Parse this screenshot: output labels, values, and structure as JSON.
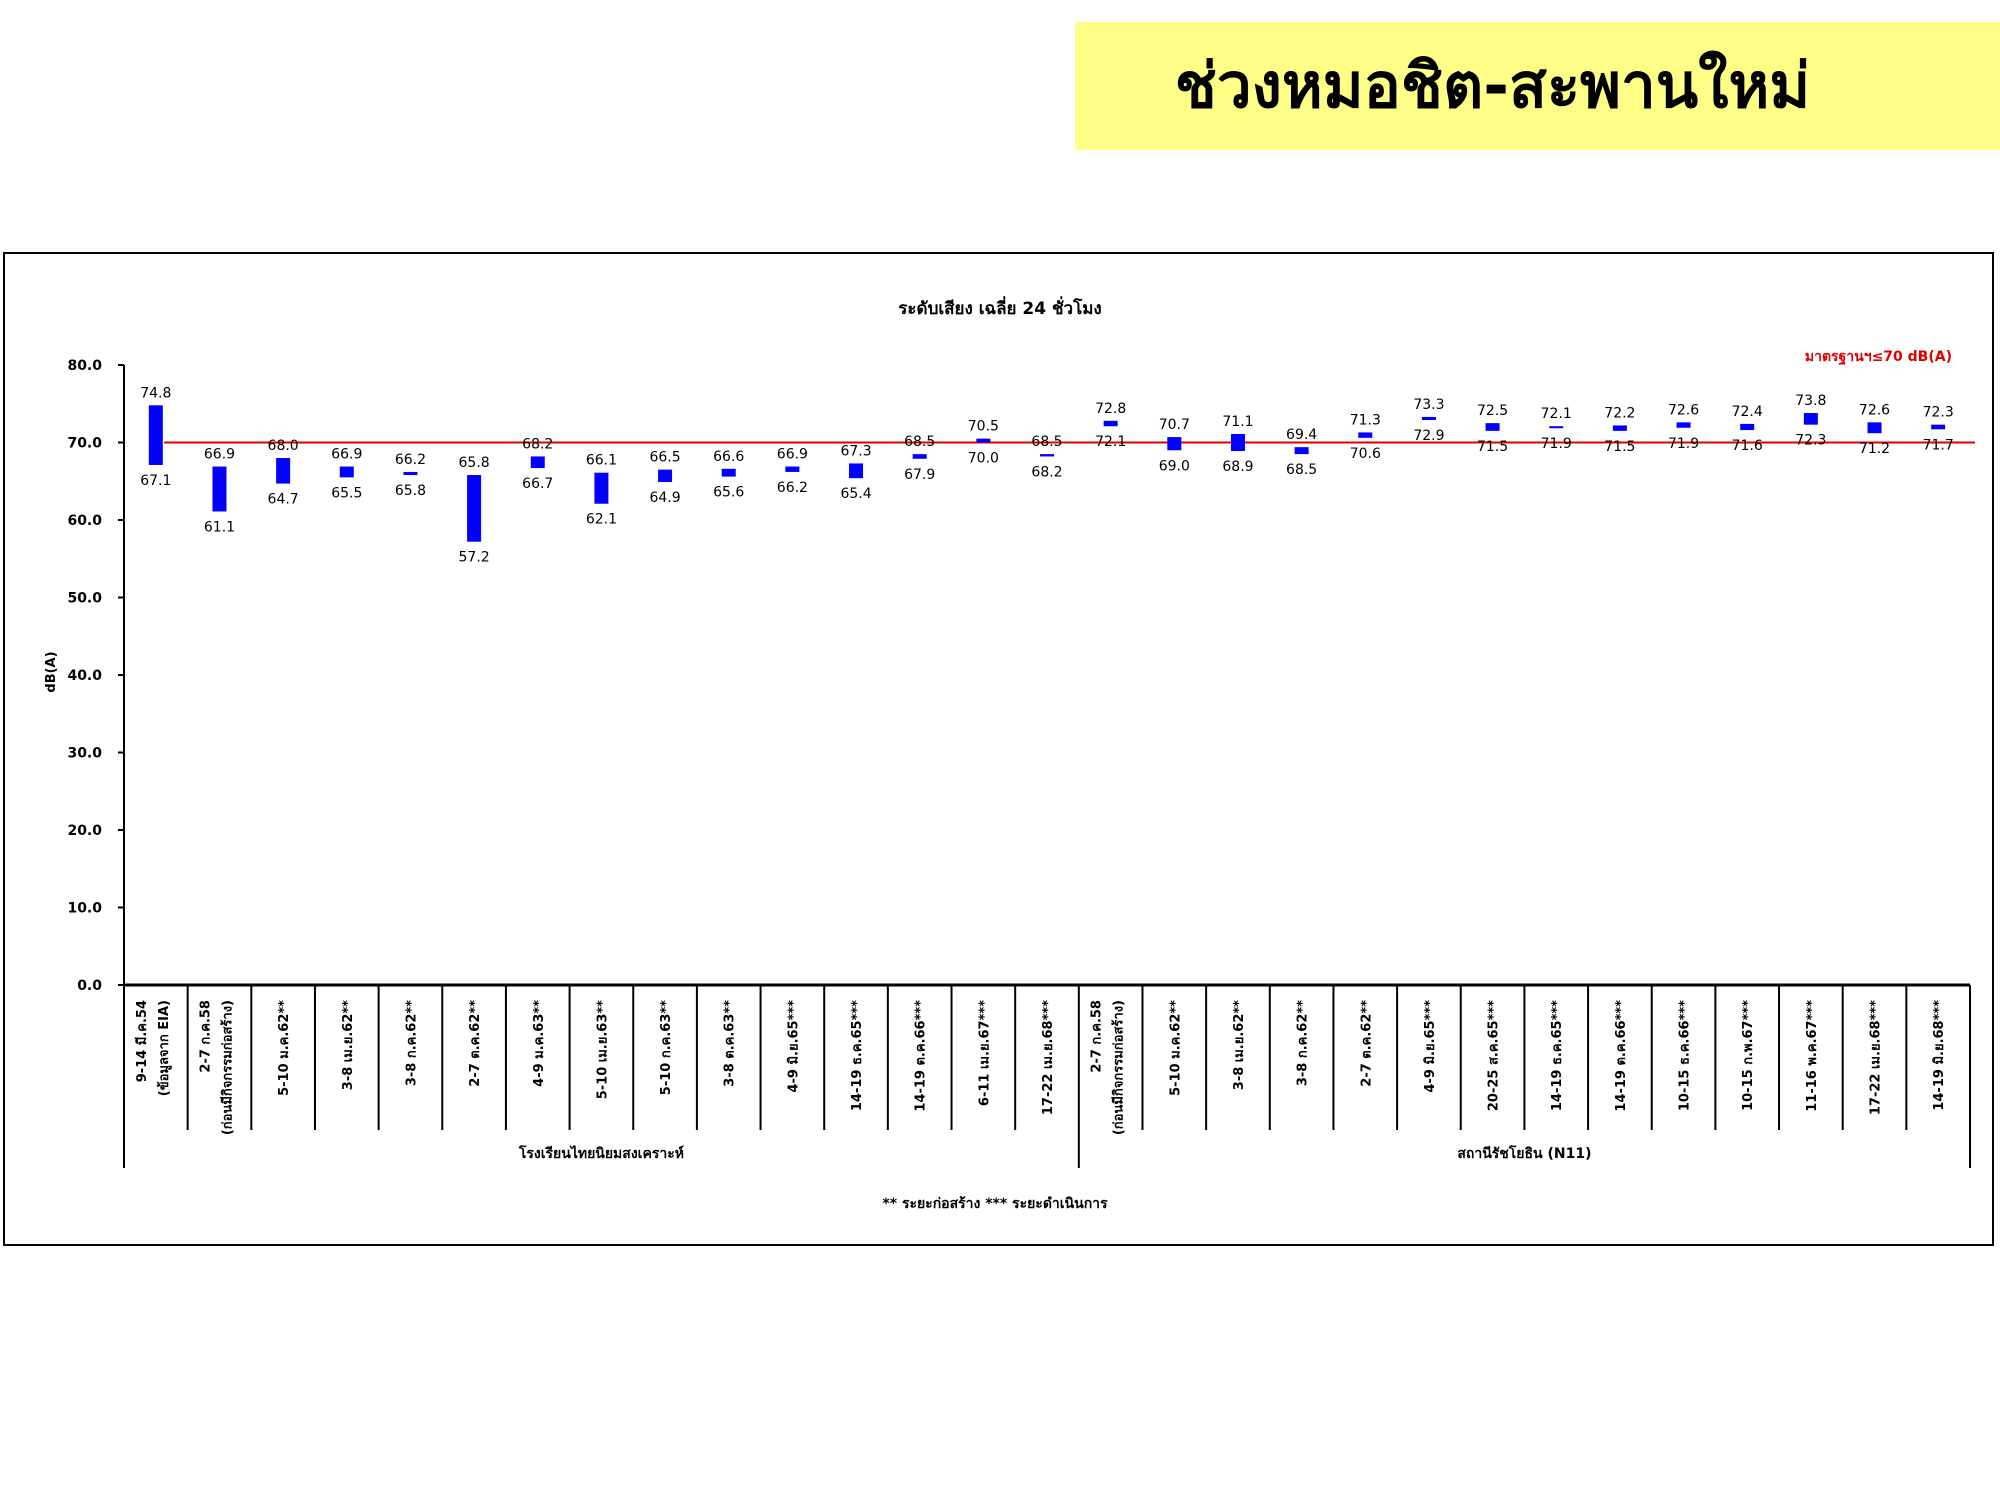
{
  "header": {
    "title": "ช่วงหมอชิต-สะพานใหม่"
  },
  "chart_data": {
    "type": "floating-bar",
    "title": "ระดับเสียง เฉลี่ย 24 ชั่วโมง",
    "ylabel": "dB(A)",
    "ylim": [
      0,
      80
    ],
    "yticks": [
      "0.0",
      "10.0",
      "20.0",
      "30.0",
      "40.0",
      "50.0",
      "60.0",
      "70.0",
      "80.0"
    ],
    "standard": {
      "value": 70,
      "label": "มาตรฐานฯ≤70 dB(A)",
      "color": "#e00000"
    },
    "bar_color": "#0000ff",
    "grid": false,
    "groups": [
      {
        "name": "โรงเรียนไทยนิยมสงเคราะห์",
        "categories": [
          [
            "9-14 มี.ค.54",
            "(ข้อมูลจาก EIA)"
          ],
          [
            "2-7 ก.ค.58",
            "(ก่อนมีกิจกรรมก่อสร้าง)"
          ],
          [
            "5-10 ม.ค.62**"
          ],
          [
            "3-8 เม.ย.62**"
          ],
          [
            "3-8 ก.ค.62**"
          ],
          [
            "2-7 ต.ค.62**"
          ],
          [
            "4-9 ม.ค.63**"
          ],
          [
            "5-10 เม.ย.63**"
          ],
          [
            "5-10 ก.ค.63**"
          ],
          [
            "3-8 ต.ค.63**"
          ],
          [
            "4-9 มิ.ย.65***"
          ],
          [
            "14-19 ธ.ค.65***"
          ],
          [
            "14-19 ต.ค.66***"
          ],
          [
            "6-11 เม.ย.67***"
          ],
          [
            "17-22 เม.ย.68***"
          ]
        ],
        "max": [
          74.8,
          66.9,
          68.0,
          66.9,
          66.2,
          65.8,
          68.2,
          66.1,
          66.5,
          66.6,
          66.9,
          67.3,
          68.5,
          70.5,
          68.5
        ],
        "min": [
          67.1,
          61.1,
          64.7,
          65.5,
          65.8,
          57.2,
          66.7,
          62.1,
          64.9,
          65.6,
          66.2,
          65.4,
          67.9,
          70.0,
          68.2
        ]
      },
      {
        "name": "สถานีรัชโยธิน (N11)",
        "categories": [
          [
            "2-7 ก.ค.58",
            "(ก่อนมีกิจกรรมก่อสร้าง)"
          ],
          [
            "5-10 ม.ค.62**"
          ],
          [
            "3-8 เม.ย.62**"
          ],
          [
            "3-8 ก.ค.62**"
          ],
          [
            "2-7 ต.ค.62**"
          ],
          [
            "4-9 มิ.ย.65***"
          ],
          [
            "20-25 ส.ค.65***"
          ],
          [
            "14-19 ธ.ค.65***"
          ],
          [
            "14-19 ต.ค.66***"
          ],
          [
            "10-15 ธ.ค.66***"
          ],
          [
            "10-15 ก.พ.67***"
          ],
          [
            "11-16 พ.ค.67***"
          ],
          [
            "17-22 เม.ย.68***"
          ],
          [
            "14-19 มิ.ย.68***"
          ]
        ],
        "max": [
          72.8,
          70.7,
          71.1,
          69.4,
          71.3,
          73.3,
          72.5,
          72.1,
          72.2,
          72.6,
          72.4,
          73.8,
          72.6,
          72.3
        ],
        "min": [
          72.1,
          69.0,
          68.9,
          68.5,
          70.6,
          72.9,
          71.5,
          71.9,
          71.5,
          71.9,
          71.6,
          72.3,
          71.2,
          71.7
        ]
      }
    ],
    "footnote": "** ระยะก่อสร้าง     *** ระยะดำเนินการ"
  }
}
